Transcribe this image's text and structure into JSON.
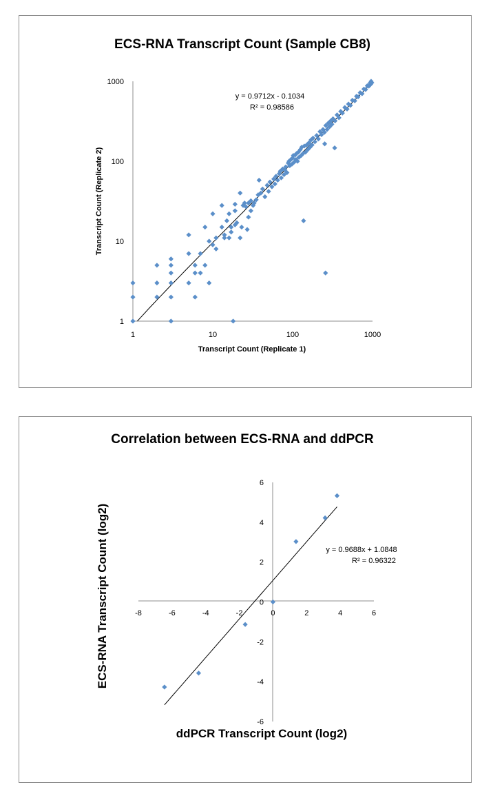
{
  "chart_data": [
    {
      "type": "scatter",
      "title": "ECS-RNA Transcript Count (Sample CB8)",
      "xlabel": "Transcript Count (Replicate 1)",
      "ylabel": "Transcript Count (Replicate 2)",
      "x_scale": "log",
      "y_scale": "log",
      "xlim": [
        1,
        1000
      ],
      "ylim": [
        1,
        1000
      ],
      "x_ticks": [
        "1",
        "10",
        "100",
        "1000"
      ],
      "y_ticks": [
        "1",
        "10",
        "100",
        "1000"
      ],
      "grid": false,
      "marker": "diamond",
      "color": "#5b8fc9",
      "trendline": {
        "slope": 0.9712,
        "intercept": -0.1034,
        "equation": "y = 0.9712x - 0.1034",
        "r2": "R² = 0.98586"
      },
      "points": [
        [
          1,
          1
        ],
        [
          1,
          2
        ],
        [
          1,
          3
        ],
        [
          2,
          2
        ],
        [
          2,
          3
        ],
        [
          2,
          5
        ],
        [
          3,
          1
        ],
        [
          3,
          2
        ],
        [
          3,
          3
        ],
        [
          3,
          4
        ],
        [
          3,
          5
        ],
        [
          3,
          6
        ],
        [
          5,
          3
        ],
        [
          5,
          7
        ],
        [
          5,
          12
        ],
        [
          6,
          2
        ],
        [
          6,
          4
        ],
        [
          6,
          5
        ],
        [
          7,
          4
        ],
        [
          7,
          7
        ],
        [
          8,
          5
        ],
        [
          8,
          15
        ],
        [
          9,
          3
        ],
        [
          9,
          10
        ],
        [
          10,
          9
        ],
        [
          10,
          22
        ],
        [
          11,
          8
        ],
        [
          11,
          11
        ],
        [
          13,
          15
        ],
        [
          13,
          28
        ],
        [
          14,
          12
        ],
        [
          14,
          11
        ],
        [
          15,
          18
        ],
        [
          16,
          11
        ],
        [
          16,
          22
        ],
        [
          17,
          13
        ],
        [
          17,
          15
        ],
        [
          18,
          1
        ],
        [
          19,
          16
        ],
        [
          19,
          24
        ],
        [
          19,
          29
        ],
        [
          20,
          17
        ],
        [
          22,
          11
        ],
        [
          22,
          40
        ],
        [
          23,
          15
        ],
        [
          24,
          28
        ],
        [
          25,
          30
        ],
        [
          26,
          27
        ],
        [
          27,
          14
        ],
        [
          28,
          20
        ],
        [
          28,
          30
        ],
        [
          30,
          24
        ],
        [
          30,
          32
        ],
        [
          32,
          28
        ],
        [
          33,
          30
        ],
        [
          35,
          33
        ],
        [
          37,
          38
        ],
        [
          38,
          58
        ],
        [
          40,
          40
        ],
        [
          42,
          45
        ],
        [
          45,
          36
        ],
        [
          48,
          50
        ],
        [
          50,
          42
        ],
        [
          52,
          55
        ],
        [
          55,
          48
        ],
        [
          58,
          60
        ],
        [
          60,
          52
        ],
        [
          62,
          65
        ],
        [
          65,
          58
        ],
        [
          68,
          70
        ],
        [
          70,
          75
        ],
        [
          72,
          62
        ],
        [
          75,
          80
        ],
        [
          78,
          68
        ],
        [
          80,
          78
        ],
        [
          82,
          85
        ],
        [
          85,
          72
        ],
        [
          88,
          95
        ],
        [
          90,
          100
        ],
        [
          92,
          88
        ],
        [
          95,
          105
        ],
        [
          98,
          92
        ],
        [
          100,
          110
        ],
        [
          102,
          118
        ],
        [
          105,
          98
        ],
        [
          108,
          120
        ],
        [
          110,
          105
        ],
        [
          112,
          125
        ],
        [
          115,
          100
        ],
        [
          118,
          130
        ],
        [
          120,
          112
        ],
        [
          125,
          140
        ],
        [
          128,
          118
        ],
        [
          130,
          150
        ],
        [
          135,
          125
        ],
        [
          137,
          18
        ],
        [
          140,
          155
        ],
        [
          145,
          130
        ],
        [
          150,
          160
        ],
        [
          155,
          140
        ],
        [
          160,
          170
        ],
        [
          165,
          150
        ],
        [
          170,
          185
        ],
        [
          175,
          160
        ],
        [
          180,
          195
        ],
        [
          190,
          175
        ],
        [
          200,
          210
        ],
        [
          210,
          190
        ],
        [
          220,
          235
        ],
        [
          230,
          215
        ],
        [
          240,
          250
        ],
        [
          250,
          230
        ],
        [
          252,
          165
        ],
        [
          258,
          4
        ],
        [
          260,
          280
        ],
        [
          270,
          250
        ],
        [
          280,
          300
        ],
        [
          290,
          270
        ],
        [
          300,
          320
        ],
        [
          310,
          290
        ],
        [
          320,
          340
        ],
        [
          336,
          147
        ],
        [
          340,
          320
        ],
        [
          360,
          380
        ],
        [
          380,
          350
        ],
        [
          400,
          420
        ],
        [
          420,
          400
        ],
        [
          450,
          470
        ],
        [
          480,
          450
        ],
        [
          500,
          520
        ],
        [
          530,
          500
        ],
        [
          560,
          580
        ],
        [
          600,
          570
        ],
        [
          630,
          650
        ],
        [
          660,
          640
        ],
        [
          700,
          720
        ],
        [
          740,
          700
        ],
        [
          780,
          800
        ],
        [
          820,
          790
        ],
        [
          860,
          880
        ],
        [
          900,
          870
        ],
        [
          930,
          950
        ],
        [
          950,
          920
        ],
        [
          960,
          1000
        ],
        [
          980,
          960
        ]
      ]
    },
    {
      "type": "scatter",
      "title": "Correlation between ECS-RNA and ddPCR",
      "xlabel": "ddPCR Transcript Count (log2)",
      "ylabel": "ECS-RNA Transcript Count (log2)",
      "xlim": [
        -8,
        6
      ],
      "ylim": [
        -6,
        6
      ],
      "x_ticks": [
        "-8",
        "-6",
        "-4",
        "-2",
        "0",
        "2",
        "4",
        "6"
      ],
      "y_ticks": [
        "-6",
        "-4",
        "-2",
        "0",
        "2",
        "4",
        "6"
      ],
      "grid": false,
      "marker": "diamond",
      "color": "#5b8fc9",
      "trendline": {
        "slope": 0.9688,
        "intercept": 1.0848,
        "equation": "y = 0.9688x + 1.0848",
        "r2": "R² = 0.96322"
      },
      "points": [
        [
          -6.45,
          -4.27
        ],
        [
          -4.42,
          -3.57
        ],
        [
          -1.65,
          -1.13
        ],
        [
          0,
          0
        ],
        [
          1.37,
          3.03
        ],
        [
          3.1,
          4.22
        ],
        [
          3.81,
          5.33
        ]
      ]
    }
  ]
}
